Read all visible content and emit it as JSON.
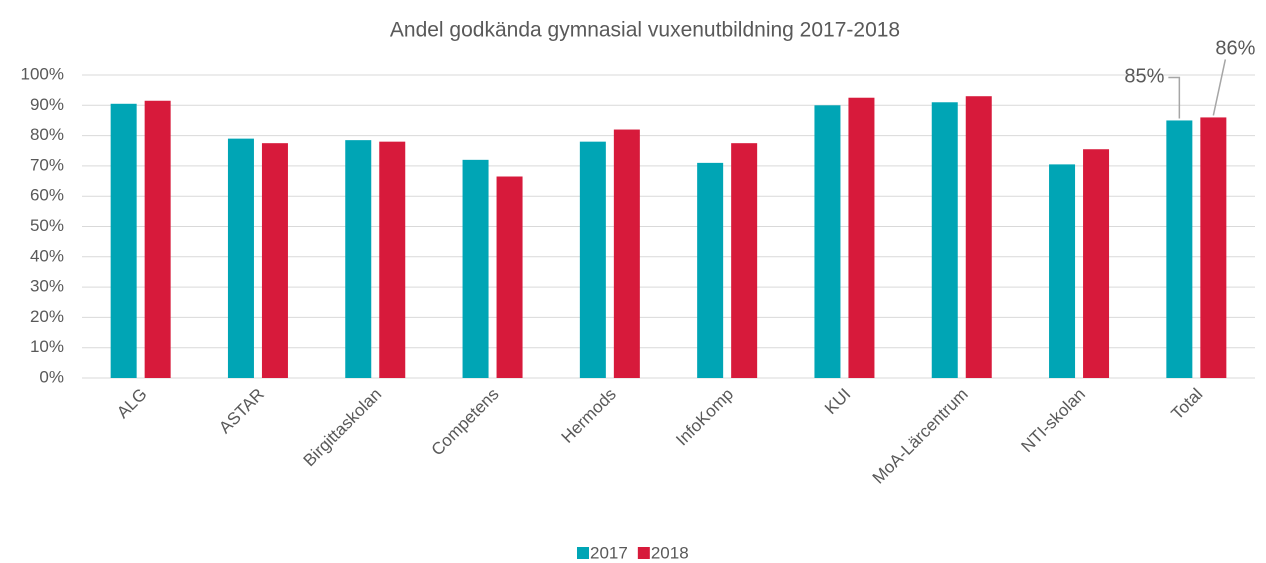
{
  "chart_data": {
    "type": "bar",
    "title": "Andel godkända gymnasial vuxenutbildning 2017-2018",
    "categories": [
      "ALG",
      "ASTAR",
      "Birgittaskolan",
      "Competens",
      "Hermods",
      "InfoKomp",
      "KUI",
      "MoA-Lärcentrum",
      "NTI-skolan",
      "Total"
    ],
    "series": [
      {
        "name": "2017",
        "color": "#00a5b5",
        "values": [
          90.5,
          79,
          78.5,
          72,
          78,
          71,
          90,
          91,
          70.5,
          85
        ],
        "value_labels": [
          null,
          null,
          null,
          null,
          null,
          null,
          null,
          null,
          null,
          "85%"
        ]
      },
      {
        "name": "2018",
        "color": "#d71a3b",
        "values": [
          91.5,
          77.5,
          78,
          66.5,
          82,
          77.5,
          92.5,
          93,
          75.5,
          86
        ],
        "value_labels": [
          null,
          null,
          null,
          null,
          null,
          null,
          null,
          null,
          null,
          "86%"
        ]
      }
    ],
    "ylim": [
      0,
      100
    ],
    "yticks": [
      {
        "value": 0,
        "label": "0%"
      },
      {
        "value": 10,
        "label": "10%"
      },
      {
        "value": 20,
        "label": "20%"
      },
      {
        "value": 30,
        "label": "30%"
      },
      {
        "value": 40,
        "label": "40%"
      },
      {
        "value": 50,
        "label": "50%"
      },
      {
        "value": 60,
        "label": "60%"
      },
      {
        "value": 70,
        "label": "70%"
      },
      {
        "value": 80,
        "label": "80%"
      },
      {
        "value": 90,
        "label": "90%"
      },
      {
        "value": 100,
        "label": "100%"
      }
    ],
    "grid": true,
    "legend": "bottom"
  }
}
